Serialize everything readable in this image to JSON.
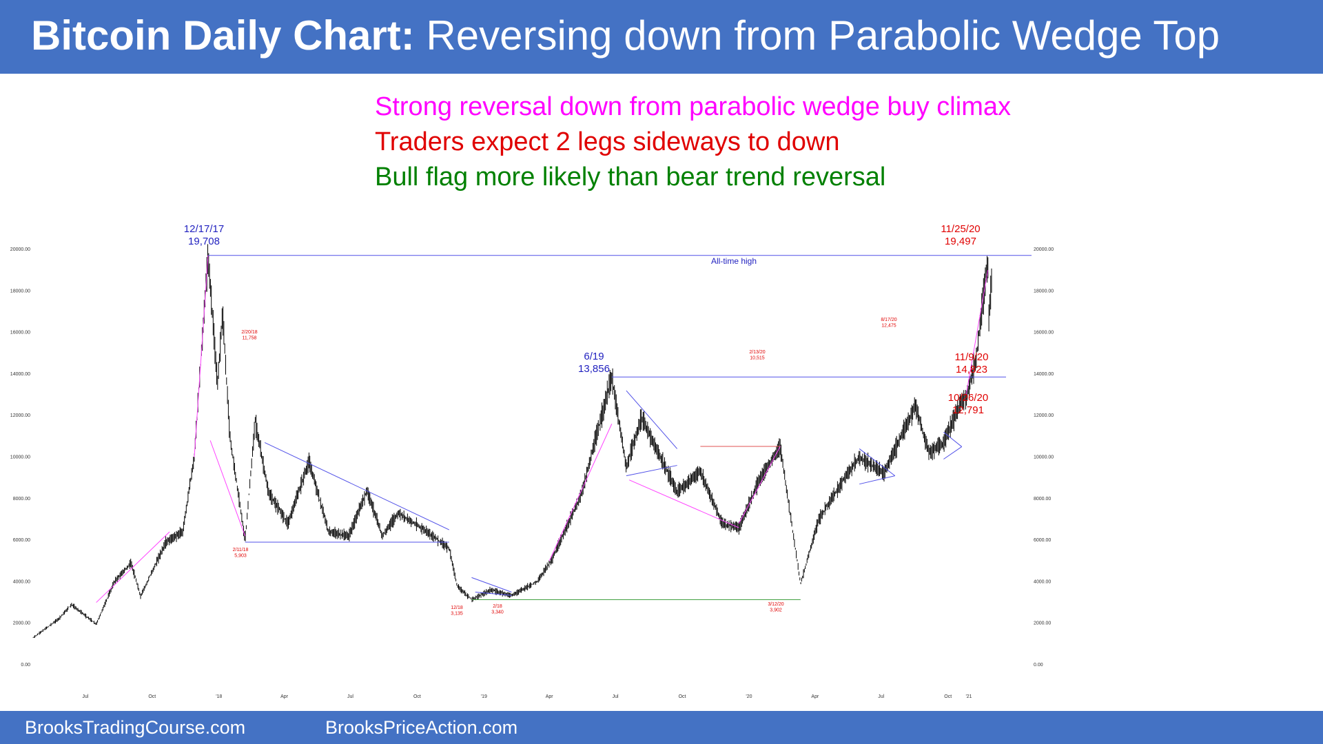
{
  "header": {
    "title_bold": "Bitcoin Daily Chart:",
    "title_rest": "Reversing down from Parabolic Wedge Top"
  },
  "notes": [
    {
      "text": "Strong reversal down from parabolic wedge buy climax",
      "color": "#ff00ff"
    },
    {
      "text": "Traders expect 2 legs sideways to down",
      "color": "#e00000"
    },
    {
      "text": "Bull flag more likely than bear trend reversal",
      "color": "#008000"
    }
  ],
  "footer": {
    "left": "BrooksTradingCourse.com",
    "right": "BrooksPriceAction.com"
  },
  "colors": {
    "header_bg": "#4472c4",
    "line_blue": "#5050e8",
    "line_magenta": "#ff40ff",
    "line_red": "#e05050",
    "line_green": "#40a040",
    "bars": "#000000"
  },
  "chart_data": {
    "type": "line",
    "title": "",
    "xlabel": "",
    "ylabel": "",
    "ylim": [
      0,
      20000
    ],
    "y_ticks": [
      "20000.00",
      "18000.00",
      "16000.00",
      "14000.00",
      "12000.00",
      "10000.00",
      "8000.00",
      "6000.00",
      "4000.00",
      "2000.00",
      "0.00"
    ],
    "x_ticks": [
      "Jul",
      "Oct",
      "'18",
      "Apr",
      "Jul",
      "Oct",
      "'19",
      "Apr",
      "Jul",
      "Oct",
      "'20",
      "Apr",
      "Jul",
      "Oct",
      "'21"
    ],
    "series": [
      {
        "x": [
          "2017-04-20",
          "2017-05-25",
          "2017-06-12",
          "2017-07-16",
          "2017-08-10",
          "2017-09-02",
          "2017-09-15",
          "2017-10-20",
          "2017-11-12",
          "2017-11-28",
          "2017-12-17",
          "2017-12-30",
          "2018-01-06",
          "2018-01-16",
          "2018-02-06",
          "2018-02-20",
          "2018-03-10",
          "2018-04-06",
          "2018-05-05",
          "2018-06-01",
          "2018-06-29",
          "2018-07-24",
          "2018-08-14",
          "2018-09-05",
          "2018-10-15",
          "2018-11-14",
          "2018-11-25",
          "2018-12-15",
          "2019-01-10",
          "2019-02-08",
          "2019-03-15",
          "2019-04-05",
          "2019-05-15",
          "2019-06-26",
          "2019-07-16",
          "2019-08-06",
          "2019-09-24",
          "2019-10-26",
          "2019-11-25",
          "2019-12-18",
          "2020-01-14",
          "2020-02-13",
          "2020-03-12",
          "2020-04-06",
          "2020-05-10",
          "2020-06-01",
          "2020-07-05",
          "2020-08-17",
          "2020-09-05",
          "2020-09-25",
          "2020-10-21",
          "2020-10-26",
          "2020-11-09",
          "2020-11-16",
          "2020-11-25",
          "2020-11-26",
          "2020-12-01"
        ],
        "values": [
          1300,
          2200,
          2900,
          1950,
          4000,
          4900,
          3300,
          5900,
          6400,
          10000,
          19708,
          13500,
          17000,
          11000,
          6000,
          11758,
          8300,
          6800,
          9800,
          6400,
          6200,
          8400,
          6200,
          7300,
          6400,
          5600,
          3800,
          3135,
          3600,
          3340,
          4000,
          5100,
          8200,
          13856,
          9500,
          11900,
          8300,
          9300,
          6800,
          6600,
          8800,
          10515,
          3902,
          7000,
          8900,
          10000,
          9200,
          12475,
          10200,
          10700,
          12800,
          12791,
          14823,
          17000,
          19497,
          16500,
          18800
        ]
      }
    ],
    "annotations": [
      {
        "label": "12/17/17",
        "value": "19,708",
        "color": "blue"
      },
      {
        "label": "11/25/20",
        "value": "19,497",
        "color": "red"
      },
      {
        "label": "All-time high",
        "color": "blue"
      },
      {
        "label": "6/19",
        "value": "13,856",
        "color": "blue"
      },
      {
        "label": "11/9/20",
        "value": "14,823",
        "color": "red"
      },
      {
        "label": "10/26/20",
        "value": "12,791",
        "color": "red"
      },
      {
        "label": "8/17/20",
        "value": "12,475",
        "color": "red"
      },
      {
        "label": "2/13/20",
        "value": "10,515",
        "color": "red"
      },
      {
        "label": "2/20/18",
        "value": "11,758",
        "color": "red"
      },
      {
        "label": "2/11/18",
        "value": "5,903",
        "color": "red"
      },
      {
        "label": "12/18",
        "value": "3,135",
        "color": "red"
      },
      {
        "label": "2/18",
        "value": "3,340",
        "color": "red"
      },
      {
        "label": "3/12/20",
        "value": "3,902",
        "color": "red"
      }
    ]
  }
}
